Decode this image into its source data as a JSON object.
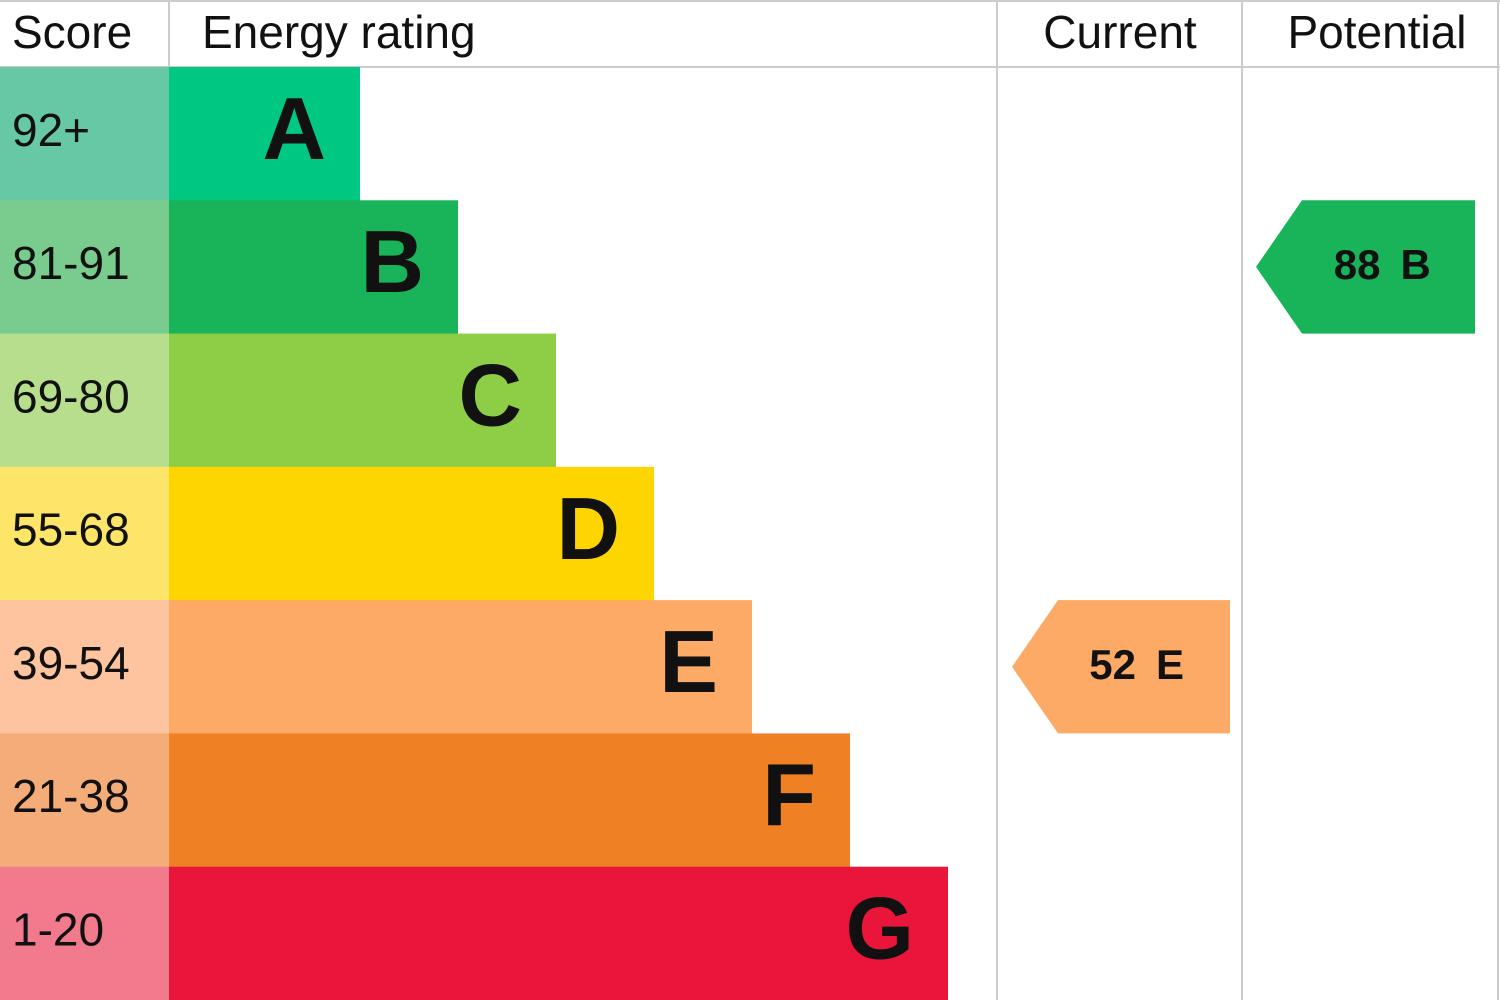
{
  "header": {
    "score": "Score",
    "rating": "Energy rating",
    "current": "Current",
    "potential": "Potential"
  },
  "bands": [
    {
      "score": "92+",
      "letter": "A",
      "color": "#00c781",
      "score_color": "#66c8a4"
    },
    {
      "score": "81-91",
      "letter": "B",
      "color": "#19b459",
      "score_color": "#7acc8e"
    },
    {
      "score": "69-80",
      "letter": "C",
      "color": "#8dce46",
      "score_color": "#b6de8c"
    },
    {
      "score": "55-68",
      "letter": "D",
      "color": "#ffd500",
      "score_color": "#fde56a"
    },
    {
      "score": "39-54",
      "letter": "E",
      "color": "#fcaa65",
      "score_color": "#fdc49f"
    },
    {
      "score": "21-38",
      "letter": "F",
      "color": "#ef8023",
      "score_color": "#f4ad78"
    },
    {
      "score": "1-20",
      "letter": "G",
      "color": "#e9153b",
      "score_color": "#f17a8d"
    }
  ],
  "current": {
    "value": "52",
    "letter": "E"
  },
  "potential": {
    "value": "88",
    "letter": "B"
  }
}
